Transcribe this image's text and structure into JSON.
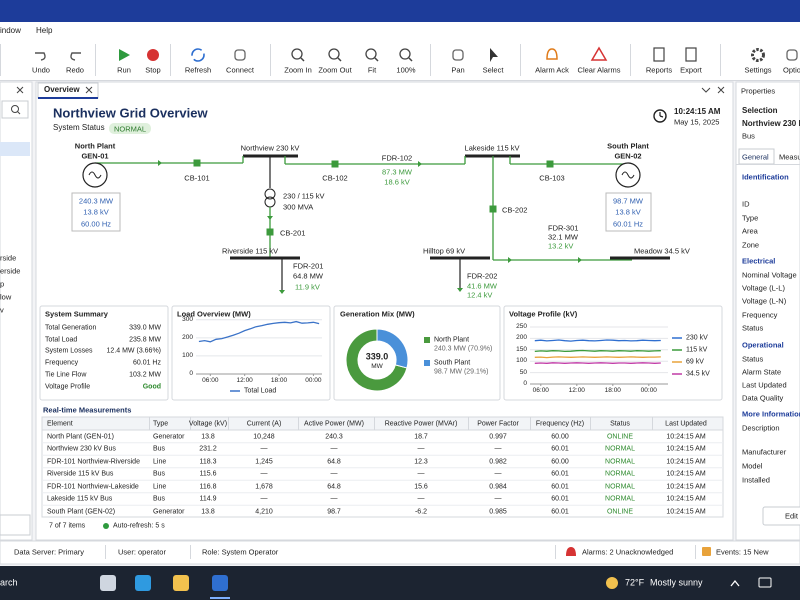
{
  "menu": [
    "indow",
    "Help"
  ],
  "toolbar": [
    "Undo",
    "Redo",
    "Run",
    "Stop",
    "Refresh",
    "Connect",
    "Zoom In",
    "Zoom Out",
    "Fit",
    "100%",
    "Pan",
    "Select",
    "Alarm Ack",
    "Clear Alarms",
    "Reports",
    "Export",
    "Settings",
    "Optio"
  ],
  "left_panel": {
    "items": [
      "rside",
      "erside",
      "p",
      "low",
      "v"
    ]
  },
  "tab": "Overview",
  "header": {
    "title": "Northview Grid Overview",
    "status_label": "System Status",
    "status": "NORMAL",
    "time": "10:24:15 AM",
    "date": "May 15, 2025"
  },
  "diagram": {
    "north_plant": {
      "name": "North Plant",
      "id": "GEN-01",
      "readings": [
        "240.3 MW",
        "13.8 kV",
        "60.00 Hz"
      ]
    },
    "south_plant": {
      "name": "South Plant",
      "id": "GEN-02",
      "readings": [
        "98.7 MW",
        "13.8 kV",
        "60.01 Hz"
      ]
    },
    "buses": [
      "Northview 230 kV",
      "Lakeside 115 kV",
      "Riverside 115 kV",
      "Hilltop 69 kV",
      "Meadow 34.5 kV"
    ],
    "breakers": [
      "CB-101",
      "CB-102",
      "CB-103",
      "CB-201",
      "CB-202"
    ],
    "transformer": [
      "230 / 115 kV",
      "300 MVA"
    ],
    "feeders": [
      {
        "name": "FDR-102",
        "readings": [
          "87.3 MW",
          "18.6 kV"
        ]
      },
      {
        "name": "FDR-201",
        "readings": [
          "64.8 MW",
          "11.9 kV"
        ]
      },
      {
        "name": "FDR-301",
        "readings": [
          "32.1 MW",
          "13.2 kV"
        ]
      },
      {
        "name": "FDR-202",
        "readings": [
          "41.6 MW",
          "12.4 kV"
        ]
      }
    ]
  },
  "summary": {
    "title": "System Summary",
    "rows": [
      [
        "Total Generation",
        "339.0 MW"
      ],
      [
        "Total Load",
        "235.8 MW"
      ],
      [
        "System Losses",
        "12.4 MW (3.66%)"
      ],
      [
        "Frequency",
        "60.01 Hz"
      ],
      [
        "Tie Line Flow",
        "103.2 MW"
      ],
      [
        "Voltage Profile",
        "Good"
      ]
    ]
  },
  "chart_data": [
    {
      "type": "line",
      "title": "Load Overview (MW)",
      "x": [
        4,
        5,
        6,
        7,
        8,
        9,
        10,
        11,
        12,
        13,
        14,
        15,
        16,
        17,
        18,
        19,
        20,
        21,
        22,
        23,
        24,
        25
      ],
      "series": [
        {
          "name": "Total Load",
          "color": "#3b73c8",
          "values": [
            180,
            185,
            178,
            192,
            196,
            205,
            215,
            226,
            240,
            250,
            262,
            268,
            275,
            280,
            284,
            286,
            283,
            290,
            281,
            283,
            286,
            279
          ]
        }
      ],
      "xlim": [
        3.5,
        25.5
      ],
      "xticks": [
        {
          "value": 6,
          "label": "06:00"
        },
        {
          "value": 12,
          "label": "12:00"
        },
        {
          "value": 18,
          "label": "18:00"
        },
        {
          "value": 24,
          "label": "00:00"
        }
      ],
      "ylim": [
        0,
        310
      ],
      "yticks": [
        0,
        100,
        200,
        300
      ],
      "grid": true,
      "legend": "bottom"
    },
    {
      "type": "pie",
      "title": "Generation Mix (MW)",
      "categories": [
        "North Plant",
        "South Plant"
      ],
      "values": [
        240.3,
        98.7
      ],
      "value_labels": [
        "240.3 MW (70.9%)",
        "98.7 MW (29.1%)"
      ],
      "colors": [
        "#4a9a3e",
        "#4a90d9"
      ],
      "center_label": "339.0",
      "center_unit": "MW",
      "legend": "right"
    },
    {
      "type": "line",
      "title": "Voltage Profile (kV)",
      "x": [
        5,
        6,
        7,
        8,
        9,
        10,
        11,
        12,
        13,
        14,
        15,
        16,
        17,
        18,
        19,
        20,
        21,
        22,
        23,
        24,
        25,
        26
      ],
      "series": [
        {
          "name": "230 kV",
          "color": "#2f6fd0",
          "values": [
            190,
            192,
            189,
            191,
            193,
            190,
            188,
            191,
            192,
            190,
            189,
            191,
            193,
            192,
            190,
            191,
            189,
            190,
            192,
            191,
            190,
            191
          ]
        },
        {
          "name": "115 kV",
          "color": "#3a9a3a",
          "values": [
            143,
            145,
            144,
            146,
            145,
            143,
            144,
            146,
            147,
            145,
            144,
            146,
            145,
            144,
            146,
            145,
            144,
            146,
            145,
            144,
            145,
            146
          ]
        },
        {
          "name": "69 kV",
          "color": "#e8a23a",
          "values": [
            117,
            118,
            116,
            118,
            119,
            118,
            117,
            118,
            119,
            118,
            117,
            118,
            119,
            118,
            117,
            118,
            119,
            118,
            117,
            118,
            118,
            119
          ]
        },
        {
          "name": "34.5 kV",
          "color": "#c03aa6",
          "values": [
            91,
            92,
            91,
            93,
            92,
            91,
            92,
            93,
            92,
            91,
            92,
            93,
            92,
            91,
            92,
            92,
            91,
            92,
            93,
            92,
            91,
            92
          ]
        }
      ],
      "xlim": [
        4.2,
        27.2
      ],
      "xticks": [
        {
          "value": 6,
          "label": "06:00"
        },
        {
          "value": 12,
          "label": "12:00"
        },
        {
          "value": 18,
          "label": "18:00"
        },
        {
          "value": 24,
          "label": "00:00"
        }
      ],
      "ylim": [
        0,
        250
      ],
      "yticks": [
        0,
        50,
        100,
        150,
        200,
        250
      ],
      "grid": true,
      "legend": "right"
    }
  ],
  "measurements": {
    "title": "Real-time Measurements",
    "columns": [
      "Element",
      "Type",
      "Voltage (kV)",
      "Current (A)",
      "Active Power (MW)",
      "Reactive Power (MVAr)",
      "Power Factor",
      "Frequency (Hz)",
      "Status",
      "Last Updated"
    ],
    "rows": [
      [
        "North Plant (GEN-01)",
        "Generator",
        "13.8",
        "10,248",
        "240.3",
        "18.7",
        "0.997",
        "60.00",
        "ONLINE",
        "10:24:15 AM"
      ],
      [
        "Northview 230 kV Bus",
        "Bus",
        "231.2",
        "—",
        "—",
        "—",
        "—",
        "60.01",
        "NORMAL",
        "10:24:15 AM"
      ],
      [
        "FDR-101 Northview-Riverside",
        "Line",
        "118.3",
        "1,245",
        "64.8",
        "12.3",
        "0.982",
        "60.00",
        "NORMAL",
        "10:24:15 AM"
      ],
      [
        "Riverside 115 kV Bus",
        "Bus",
        "115.6",
        "—",
        "—",
        "—",
        "—",
        "60.01",
        "NORMAL",
        "10:24:15 AM"
      ],
      [
        "FDR-101 Northview-Lakeside",
        "Line",
        "116.8",
        "1,678",
        "64.8",
        "15.6",
        "0.984",
        "60.01",
        "NORMAL",
        "10:24:15 AM"
      ],
      [
        "Lakeside 115 kV Bus",
        "Bus",
        "114.9",
        "—",
        "—",
        "—",
        "—",
        "60.01",
        "NORMAL",
        "10:24:15 AM"
      ],
      [
        "South Plant (GEN-02)",
        "Generator",
        "13.8",
        "4,210",
        "98.7",
        "-6.2",
        "0.985",
        "60.01",
        "ONLINE",
        "10:24:15 AM"
      ]
    ],
    "footer": "7 of 7 items",
    "auto_refresh": "Auto-refresh: 5 s"
  },
  "properties": {
    "title": "Properties",
    "selection_label": "Selection",
    "selection": "Northview 230 k",
    "selection_type": "Bus",
    "tabs": [
      "General",
      "Measu"
    ],
    "sections": [
      {
        "title": "Identification",
        "fields": [
          "ID",
          "Type",
          "Area",
          "Zone"
        ]
      },
      {
        "title": "Electrical",
        "fields": [
          "Nominal Voltage",
          "Voltage (L-L)",
          "Voltage (L-N)",
          "Frequency",
          "Status"
        ]
      },
      {
        "title": "Operational",
        "fields": [
          "Status",
          "Alarm State",
          "Last Updated",
          "Data Quality"
        ]
      },
      {
        "title": "More Information",
        "fields": [
          "Description",
          "Manufacturer",
          "Model",
          "Installed"
        ]
      }
    ],
    "edit": "Edit"
  },
  "status_bar": [
    "Data Server: Primary",
    "User: operator",
    "Role: System Operator",
    "Alarms: 2 Unacknowledged",
    "Events: 15 New"
  ],
  "taskbar": {
    "search": "arch",
    "weather": "72°F",
    "condition": "Mostly sunny"
  }
}
